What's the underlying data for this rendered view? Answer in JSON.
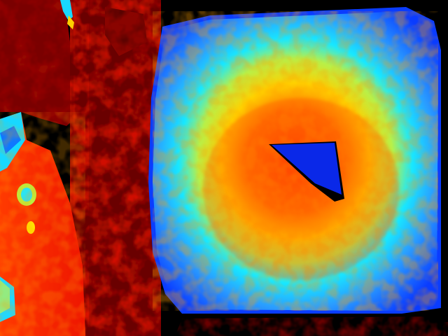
{
  "image": {
    "kind": "depth-map",
    "colormap": "jet",
    "colors": {
      "background_void": "#000000",
      "far_dark_red": "#7a0000",
      "mid_red": "#c81400",
      "bright_red": "#ff2200",
      "orange": "#ff7a00",
      "yellow": "#ffe000",
      "cyan": "#18e8ff",
      "light_blue": "#2aa0ff",
      "blue": "#0a40ff",
      "deep_blue": "#0018d0"
    }
  }
}
